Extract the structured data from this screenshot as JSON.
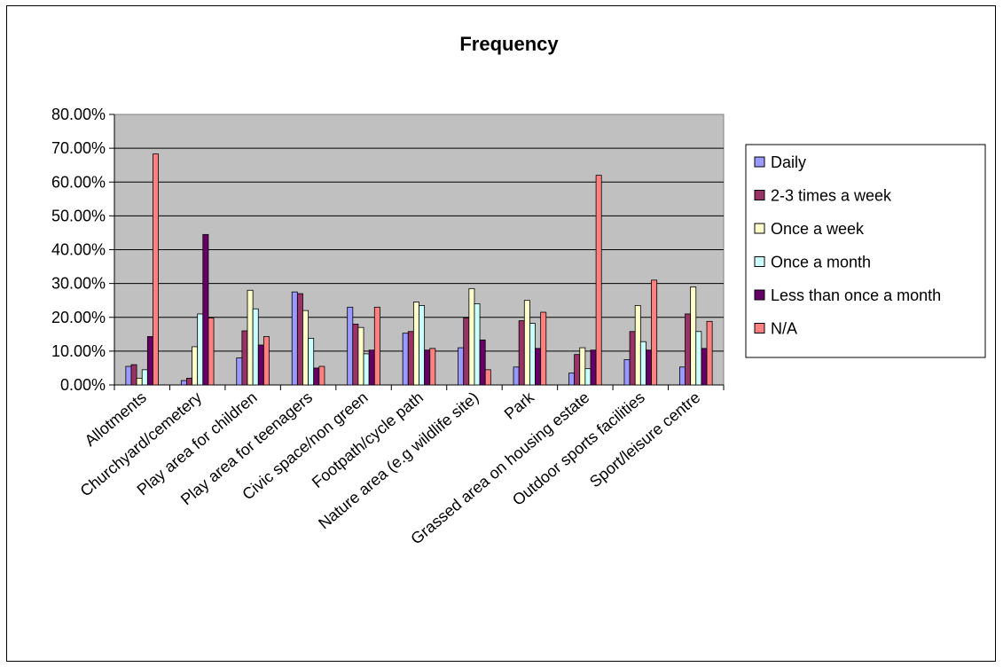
{
  "chart_data": {
    "type": "bar",
    "title": "Frequency",
    "xlabel": "",
    "ylabel": "",
    "ylim": [
      0,
      0.8
    ],
    "yticks": [
      "0.00%",
      "10.00%",
      "20.00%",
      "30.00%",
      "40.00%",
      "50.00%",
      "60.00%",
      "70.00%",
      "80.00%"
    ],
    "grid": true,
    "legend_position": "right",
    "categories": [
      "Allotments",
      "Churchyard/cemetery",
      "Play area for children",
      "Play area for teenagers",
      "Civic space/non green",
      "Footpath/cycle path",
      "Nature area (e.g wildlife site)",
      "Park",
      "Grassed area on housing estate",
      "Outdoor sports facilities",
      "Sport/leisure centre"
    ],
    "series": [
      {
        "name": "Daily",
        "color": "#9999ff",
        "values": [
          0.055,
          0.013,
          0.08,
          0.275,
          0.23,
          0.153,
          0.11,
          0.053,
          0.035,
          0.075,
          0.053
        ]
      },
      {
        "name": "2-3 times a week",
        "color": "#993366",
        "values": [
          0.06,
          0.02,
          0.16,
          0.27,
          0.18,
          0.158,
          0.198,
          0.19,
          0.09,
          0.158,
          0.21
        ]
      },
      {
        "name": "Once a week",
        "color": "#ffffcc",
        "values": [
          0.02,
          0.113,
          0.28,
          0.22,
          0.17,
          0.245,
          0.285,
          0.25,
          0.11,
          0.235,
          0.29
        ]
      },
      {
        "name": "Once a month",
        "color": "#ccffff",
        "values": [
          0.045,
          0.21,
          0.225,
          0.138,
          0.092,
          0.235,
          0.24,
          0.182,
          0.048,
          0.128,
          0.158
        ]
      },
      {
        "name": "Less than once a month",
        "color": "#660066",
        "values": [
          0.143,
          0.445,
          0.118,
          0.05,
          0.103,
          0.103,
          0.133,
          0.108,
          0.103,
          0.103,
          0.108
        ]
      },
      {
        "name": "N/A",
        "color": "#ff8080",
        "values": [
          0.683,
          0.198,
          0.143,
          0.055,
          0.23,
          0.108,
          0.045,
          0.215,
          0.62,
          0.31,
          0.188
        ]
      }
    ],
    "plot_background": "#c0c0c0"
  }
}
